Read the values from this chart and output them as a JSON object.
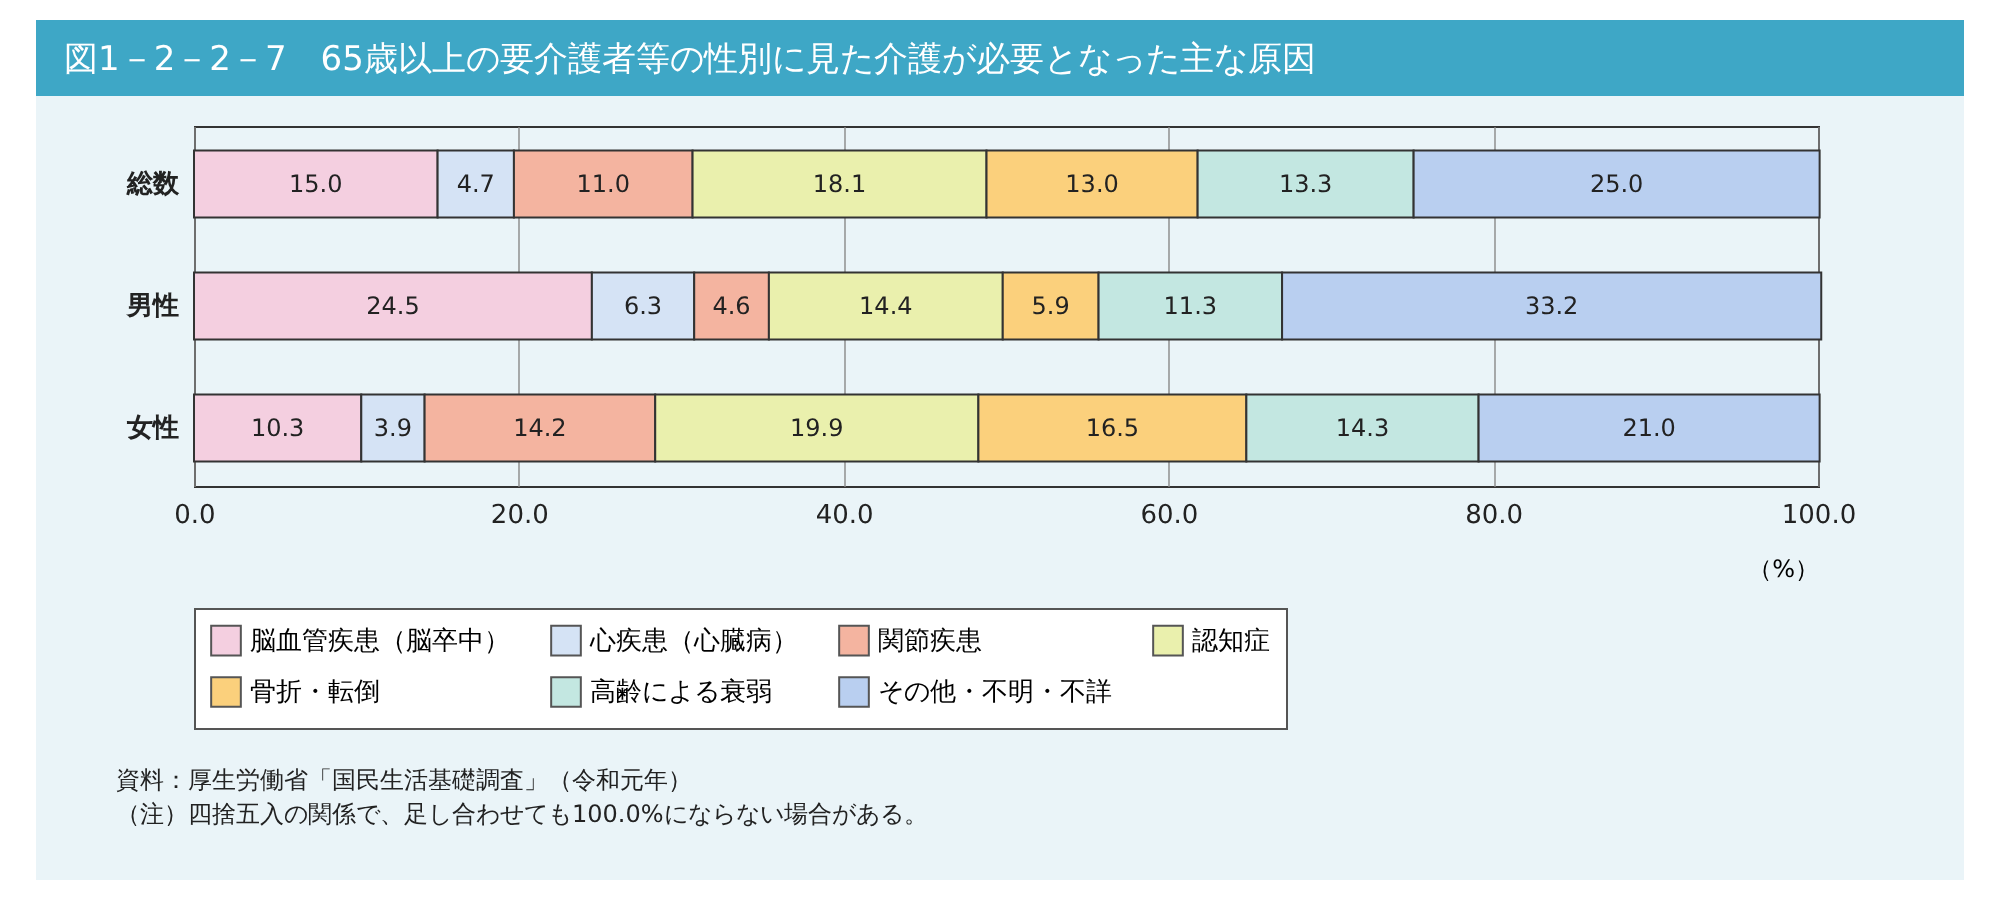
{
  "chart_data": {
    "type": "bar",
    "orientation": "horizontal",
    "stacked": true,
    "title": "図1－2－2－7　65歳以上の要介護者等の性別に見た介護が必要となった主な原因",
    "xlabel": "（%）",
    "categories": [
      "総数",
      "男性",
      "女性"
    ],
    "series": [
      {
        "name": "脳血管疾患（脳卒中）",
        "color": "#f4cfe0",
        "values": [
          15.0,
          24.5,
          10.3
        ],
        "value_labels": [
          "15.0",
          "24.5",
          "10.3"
        ]
      },
      {
        "name": "心疾患（心臓病）",
        "color": "#d5e3f5",
        "values": [
          4.7,
          6.3,
          3.9
        ],
        "value_labels": [
          "4.7",
          "6.3",
          "3.9"
        ]
      },
      {
        "name": "関節疾患",
        "color": "#f4b4a0",
        "values": [
          11.0,
          4.6,
          14.2
        ],
        "value_labels": [
          "11.0",
          "4.6",
          "14.2"
        ]
      },
      {
        "name": "認知症",
        "color": "#eaf0ad",
        "values": [
          18.1,
          14.4,
          19.9
        ],
        "value_labels": [
          "18.1",
          "14.4",
          "19.9"
        ]
      },
      {
        "name": "骨折・転倒",
        "color": "#fbd07c",
        "values": [
          13.0,
          5.9,
          16.5
        ],
        "value_labels": [
          "13.0",
          "5.9",
          "16.5"
        ]
      },
      {
        "name": "高齢による衰弱",
        "color": "#c3e7e1",
        "values": [
          13.3,
          11.3,
          14.3
        ],
        "value_labels": [
          "13.3",
          "11.3",
          "14.3"
        ]
      },
      {
        "name": "その他・不明・不詳",
        "color": "#b9cff0",
        "values": [
          25.0,
          33.2,
          21.0
        ],
        "value_labels": [
          "25.0",
          "33.2",
          "21.0"
        ]
      }
    ],
    "xlim": [
      0,
      100
    ],
    "xticks": [
      {
        "value": 0,
        "label": "0.0"
      },
      {
        "value": 20,
        "label": "20.0"
      },
      {
        "value": 40,
        "label": "40.0"
      },
      {
        "value": 60,
        "label": "60.0"
      },
      {
        "value": 80,
        "label": "80.0"
      },
      {
        "value": 100,
        "label": "100.0"
      }
    ],
    "grid": "x",
    "legend": "bottom",
    "annotations": [
      "資料：厚生労働省「国民生活基礎調査」（令和元年）",
      "（注）四捨五入の関係で、足し合わせても100.0%にならない場合がある。"
    ]
  }
}
